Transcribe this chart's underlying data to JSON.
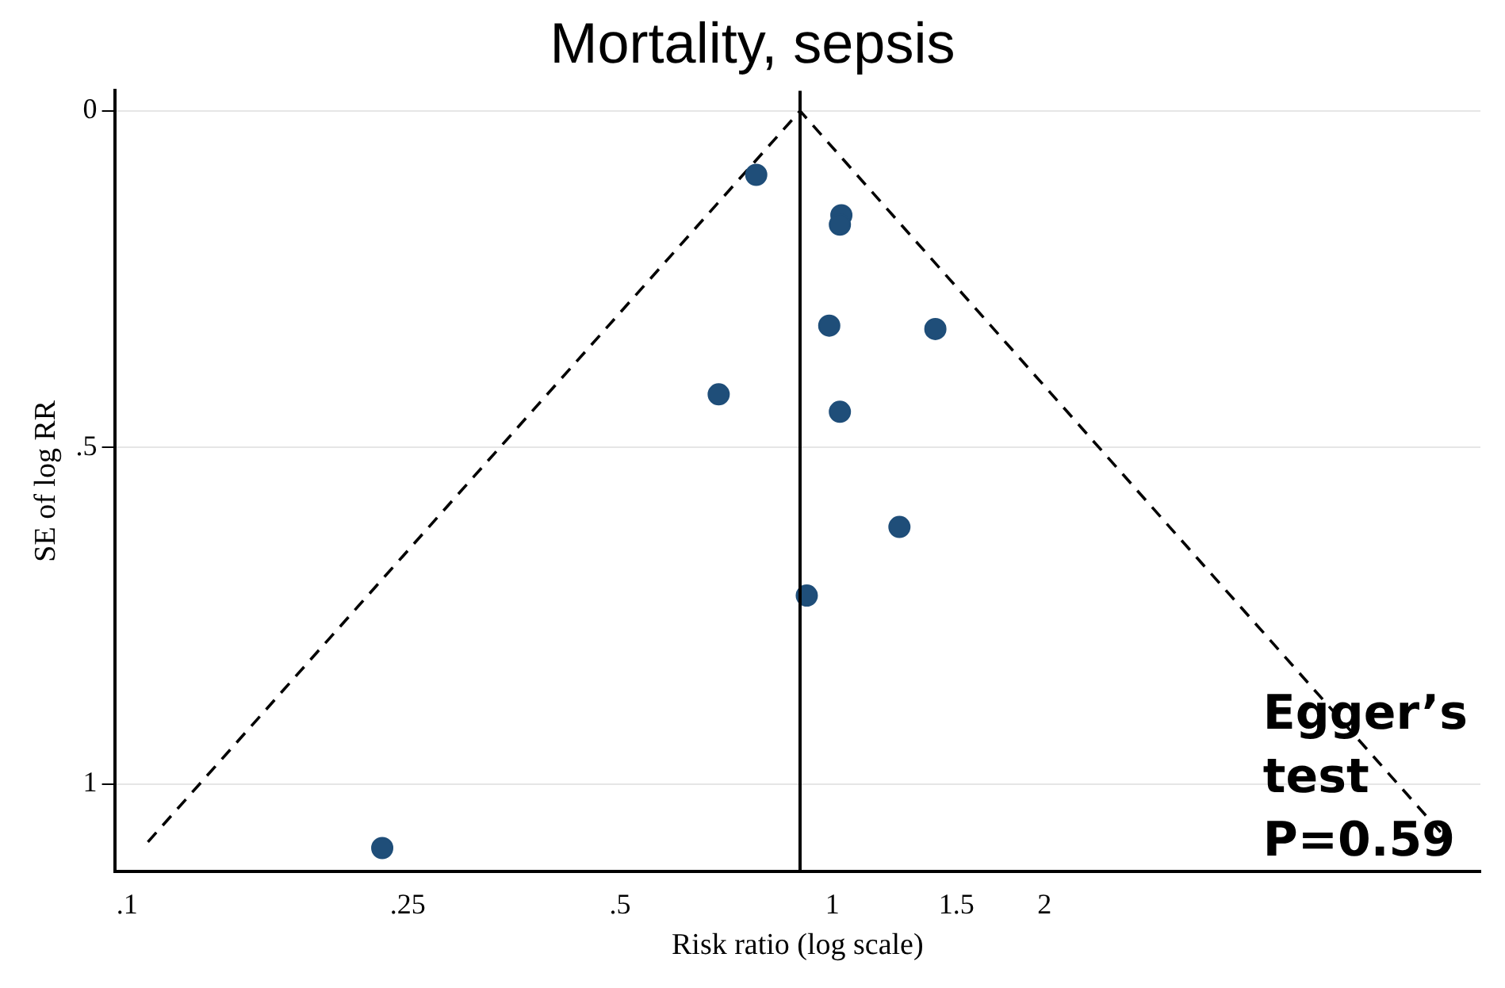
{
  "chart_data": {
    "type": "scatter",
    "title": "Mortality, sepsis",
    "xlabel": "Risk ratio (log scale)",
    "ylabel": "SE of log RR",
    "log": "x",
    "grid": "y",
    "marker": "circle",
    "xlim": [
      0.096,
      8.3
    ],
    "ylim": [
      1.13,
      -0.03
    ],
    "xticks": [
      {
        "value": 0.1,
        "label": ".1"
      },
      {
        "value": 0.25,
        "label": ".25"
      },
      {
        "value": 0.5,
        "label": ".5"
      },
      1,
      1.5,
      2
    ],
    "yticks": [
      0,
      {
        "value": 0.5,
        "label": ".5"
      },
      1
    ],
    "series": [
      {
        "color": "#1f4e79",
        "x": [
          0.78,
          1.03,
          1.025,
          0.99,
          1.4,
          0.69,
          1.025,
          1.245,
          0.92,
          0.23
        ],
        "values": [
          0.095,
          0.155,
          0.169,
          0.319,
          0.324,
          0.421,
          0.447,
          0.618,
          0.72,
          1.095
        ]
      },
      {
        "type": "line",
        "color": "#000000",
        "line_style": "dashed",
        "marker": "none",
        "x": [
          0.107,
          0.9,
          7.5
        ],
        "values": [
          1.086,
          0,
          1.086
        ]
      }
    ],
    "ref_lines": [
      {
        "axis": "x",
        "value": 0.9,
        "color": "#000000",
        "line_style": "solid"
      }
    ],
    "annotations": [
      "Egger’s test P=0.59"
    ]
  }
}
